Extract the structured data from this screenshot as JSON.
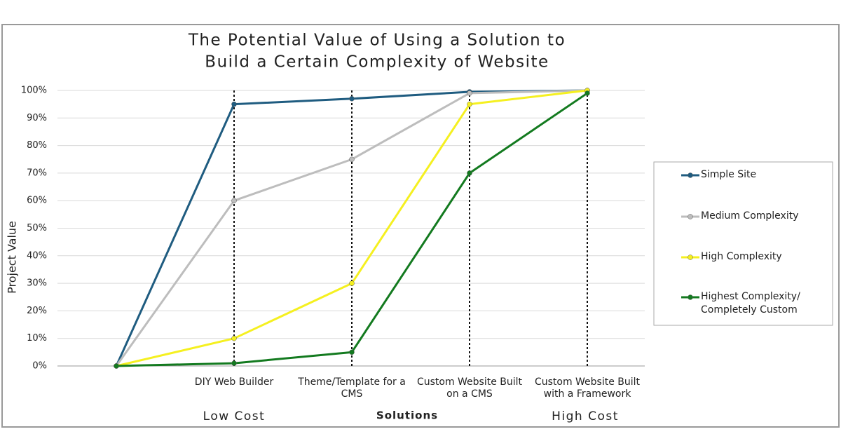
{
  "chart_data": {
    "type": "line",
    "title": [
      "The Potential Value of Using a Solution to",
      "Build a Certain Complexity of Website"
    ],
    "x_label": "Solutions",
    "y_label": "Project Value",
    "annotations": [
      "Low Cost",
      "High Cost"
    ],
    "categories": [
      null,
      "DIY Web Builder",
      "Theme/Template for a CMS",
      "Custom Website Built on a CMS",
      "Custom Website Built with a Framework"
    ],
    "series": [
      {
        "name": "Simple Site",
        "color": "#1f5c80",
        "values": [
          0,
          95,
          97,
          99.5,
          100
        ]
      },
      {
        "name": "Medium Complexity",
        "color": "#bdbdbd",
        "values": [
          0,
          60,
          75,
          99,
          100
        ]
      },
      {
        "name": "High Complexity",
        "color": "#f5f020",
        "values": [
          0,
          10,
          30,
          95,
          100
        ]
      },
      {
        "name": "Highest Complexity/ Completely Custom",
        "color": "#137a1f",
        "values": [
          0,
          1,
          5,
          70,
          99
        ]
      }
    ],
    "ylim": [
      0,
      100
    ],
    "yticks": [
      {
        "value": 0,
        "label": "0%"
      },
      {
        "value": 10,
        "label": "10%"
      },
      {
        "value": 20,
        "label": "20%"
      },
      {
        "value": 30,
        "label": "30%"
      },
      {
        "value": 40,
        "label": "40%"
      },
      {
        "value": 50,
        "label": "50%"
      },
      {
        "value": 60,
        "label": "60%"
      },
      {
        "value": 70,
        "label": "70%"
      },
      {
        "value": 80,
        "label": "80%"
      },
      {
        "value": 90,
        "label": "90%"
      },
      {
        "value": 100,
        "label": "100%"
      }
    ],
    "grid": true,
    "legend": "right"
  }
}
